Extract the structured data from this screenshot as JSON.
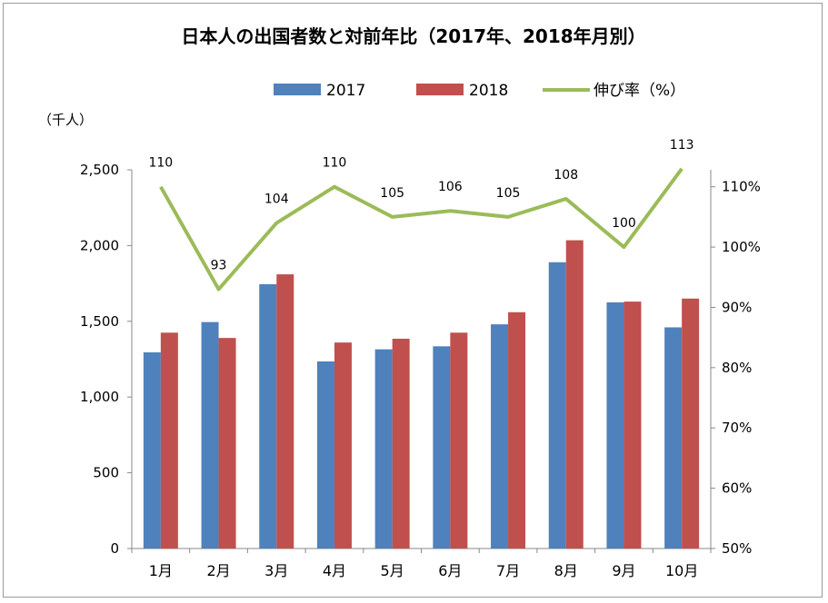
{
  "chart_data": {
    "type": "bar",
    "title": "日本人の出国者数と対前年比（2017年、2018年月別）",
    "ylabel": "（千人）",
    "categories": [
      "1月",
      "2月",
      "3月",
      "4月",
      "5月",
      "6月",
      "7月",
      "8月",
      "9月",
      "10月"
    ],
    "series": [
      {
        "name": "2017",
        "type": "bar",
        "color": "#4f81bd",
        "axis": "left",
        "values": [
          1295,
          1495,
          1745,
          1235,
          1315,
          1335,
          1480,
          1890,
          1625,
          1460
        ]
      },
      {
        "name": "2018",
        "type": "bar",
        "color": "#c0504d",
        "axis": "left",
        "values": [
          1425,
          1390,
          1810,
          1360,
          1385,
          1425,
          1560,
          2035,
          1630,
          1650
        ]
      },
      {
        "name": "伸び率（%）",
        "type": "line",
        "color": "#9bbb59",
        "axis": "right",
        "values": [
          110,
          93,
          104,
          110,
          105,
          106,
          105,
          108,
          100,
          113
        ],
        "labels": [
          "110",
          "93",
          "104",
          "110",
          "105",
          "106",
          "105",
          "108",
          "100",
          "113"
        ]
      }
    ],
    "left_axis": {
      "ylim": [
        0,
        2500
      ],
      "ticks": [
        0,
        500,
        1000,
        1500,
        2000,
        2500
      ],
      "tick_labels": [
        "0",
        "500",
        "1,000",
        "1,500",
        "2,000",
        "2,500"
      ]
    },
    "right_axis": {
      "ylim": [
        50,
        115
      ],
      "ticks": [
        50,
        60,
        70,
        80,
        90,
        100,
        110
      ],
      "tick_labels": [
        "50%",
        "60%",
        "70%",
        "80%",
        "90%",
        "100%",
        "110%"
      ]
    },
    "grid": false,
    "legend_position": "top"
  }
}
